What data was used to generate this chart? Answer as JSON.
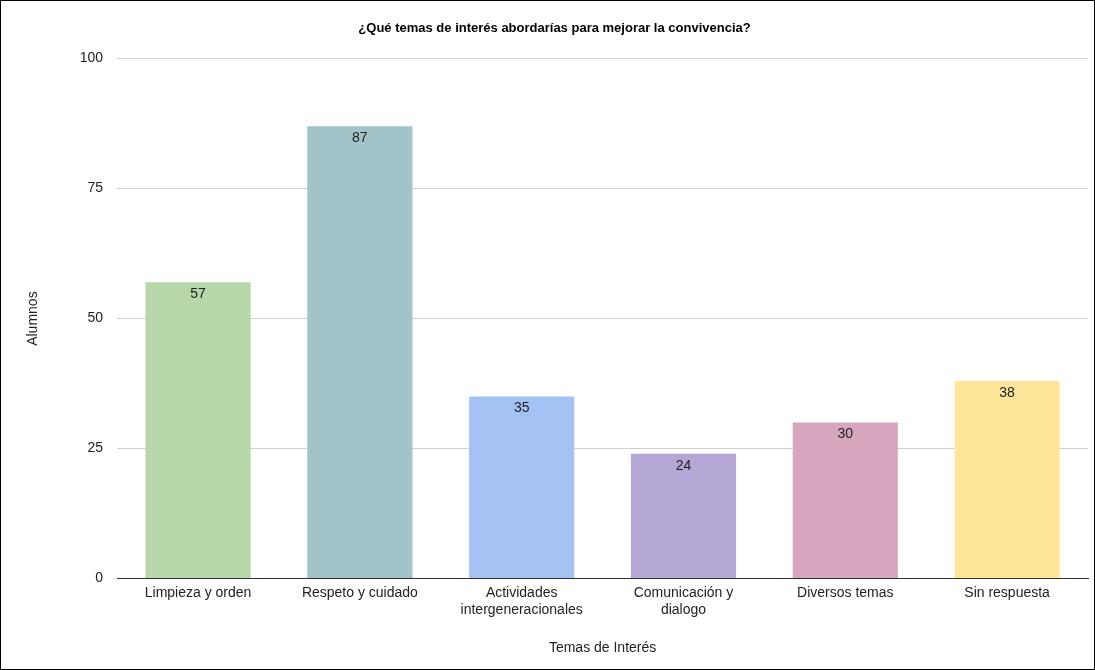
{
  "chart_data": {
    "type": "bar",
    "title": "¿Qué temas de interés abordarías para mejorar la convivencia?",
    "xlabel": "Temas de Interés",
    "ylabel": "Alumnos",
    "categories": [
      "Limpieza y orden",
      "Respeto y cuidado",
      "Actividades intergeneracionales",
      "Comunicación y dialogo",
      "Diversos temas",
      "Sin respuesta"
    ],
    "values": [
      57,
      87,
      35,
      24,
      30,
      38
    ],
    "colors": [
      "#b6d7a8",
      "#a2c4c9",
      "#a4c2f4",
      "#b4a7d6",
      "#d5a6bd",
      "#ffe599"
    ],
    "ylim": [
      0,
      100
    ],
    "yticks": [
      0,
      25,
      50,
      75,
      100
    ],
    "grid": "y",
    "data_labels": true,
    "legend": false
  }
}
